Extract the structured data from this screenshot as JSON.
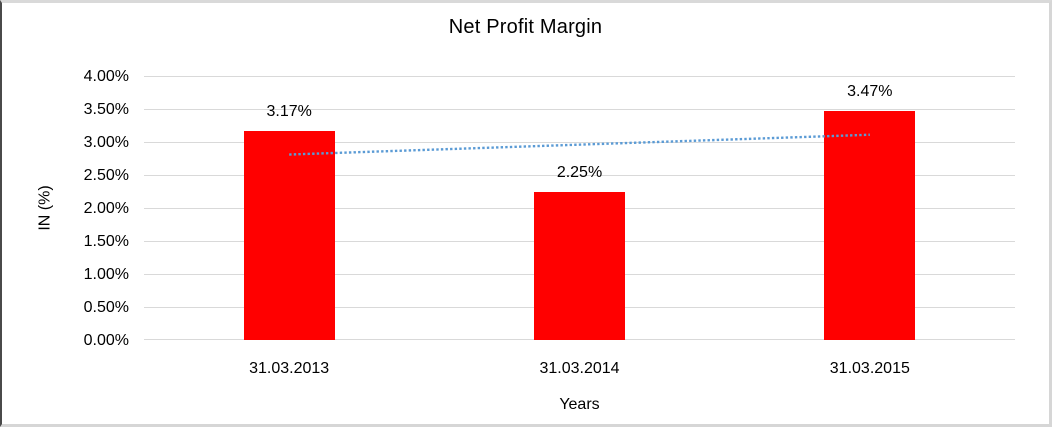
{
  "chart_data": {
    "type": "bar",
    "title": "Net Profit Margin",
    "xlabel": "Years",
    "ylabel": "IN (%)",
    "categories": [
      "31.03.2013",
      "31.03.2014",
      "31.03.2015"
    ],
    "values": [
      3.17,
      2.25,
      3.47
    ],
    "data_labels": [
      "3.17%",
      "2.25%",
      "3.47%"
    ],
    "ylim": [
      0,
      4
    ],
    "ytick_step": 0.5,
    "yticks_top_to_bottom": [
      "4.00%",
      "3.50%",
      "3.00%",
      "2.50%",
      "2.00%",
      "1.50%",
      "1.00%",
      "0.50%",
      "0.00%"
    ],
    "grid": "horizontal",
    "legend": "none",
    "bar_color": "#ff0000",
    "gridline_color": "#d9d9d9",
    "text_color": "#000000",
    "trendline": {
      "type": "linear",
      "style": "dotted",
      "color": "#5b9bd5",
      "start_value": 2.81,
      "end_value": 3.11
    }
  }
}
